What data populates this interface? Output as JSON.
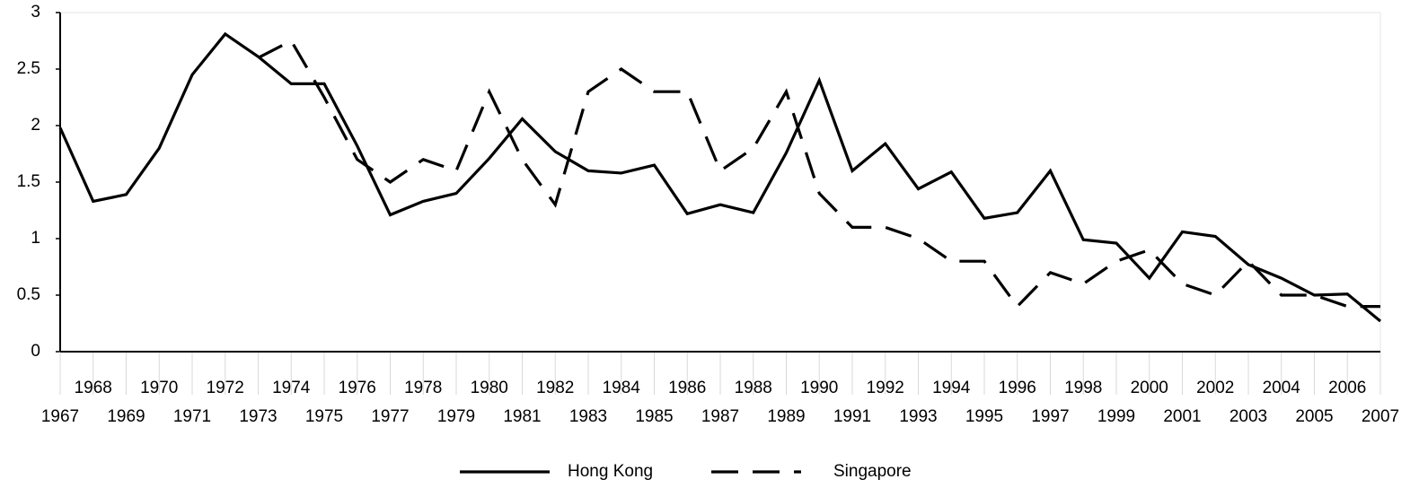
{
  "chart_data": {
    "type": "line",
    "x": [
      1967,
      1968,
      1969,
      1970,
      1971,
      1972,
      1973,
      1974,
      1975,
      1976,
      1977,
      1978,
      1979,
      1980,
      1981,
      1982,
      1983,
      1984,
      1985,
      1986,
      1987,
      1988,
      1989,
      1990,
      1991,
      1992,
      1993,
      1994,
      1995,
      1996,
      1997,
      1998,
      1999,
      2000,
      2001,
      2002,
      2003,
      2004,
      2005,
      2006,
      2007
    ],
    "series": [
      {
        "name": "Hong Kong",
        "color": "#000000",
        "dash": "solid",
        "values": [
          1.98,
          1.33,
          1.39,
          1.8,
          2.45,
          2.81,
          2.61,
          2.37,
          2.37,
          1.82,
          1.21,
          1.33,
          1.4,
          1.71,
          2.06,
          1.77,
          1.6,
          1.58,
          1.65,
          1.22,
          1.3,
          1.23,
          1.76,
          2.4,
          1.6,
          1.84,
          1.44,
          1.59,
          1.18,
          1.23,
          1.6,
          0.99,
          0.96,
          0.65,
          1.06,
          1.02,
          0.77,
          0.65,
          0.5,
          0.51,
          0.27
        ]
      },
      {
        "name": "Singapore",
        "color": "#000000",
        "dash": "dashed",
        "values": [
          null,
          null,
          null,
          null,
          null,
          null,
          2.6,
          2.75,
          2.25,
          1.7,
          1.5,
          1.7,
          1.6,
          2.3,
          1.7,
          1.3,
          2.3,
          2.5,
          2.3,
          2.3,
          1.6,
          1.8,
          2.3,
          1.4,
          1.1,
          1.1,
          1.0,
          0.8,
          0.8,
          0.4,
          0.7,
          0.6,
          0.8,
          0.9,
          0.6,
          0.5,
          0.8,
          0.5,
          0.5,
          0.4,
          0.4
        ]
      }
    ],
    "xlim": [
      1967,
      2007
    ],
    "xticks": [
      1967,
      1968,
      1969,
      1970,
      1971,
      1972,
      1973,
      1974,
      1975,
      1976,
      1977,
      1978,
      1979,
      1980,
      1981,
      1982,
      1983,
      1984,
      1985,
      1986,
      1987,
      1988,
      1989,
      1990,
      1991,
      1992,
      1993,
      1994,
      1995,
      1996,
      1997,
      1998,
      1999,
      2000,
      2001,
      2002,
      2003,
      2004,
      2005,
      2006,
      2007
    ],
    "ylim": [
      0,
      3
    ],
    "yticks": [
      0,
      0.5,
      1,
      1.5,
      2,
      2.5,
      3
    ],
    "legend": "bottom"
  }
}
